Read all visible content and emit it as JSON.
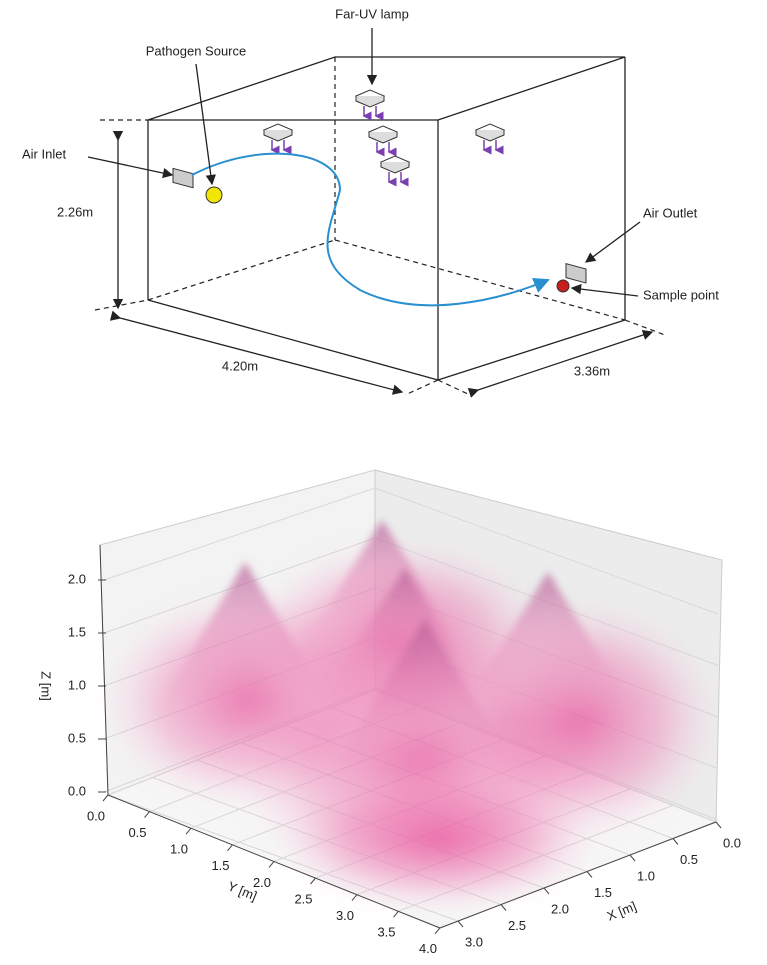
{
  "diagram": {
    "labels": {
      "lamp": "Far-UV lamp",
      "source": "Pathogen Source",
      "inlet": "Air Inlet",
      "outlet": "Air Outlet",
      "sample": "Sample point"
    },
    "dimensions": {
      "height": "2.26m",
      "length": "4.20m",
      "width": "3.36m"
    }
  },
  "plot": {
    "z_label": "Z [m]",
    "y_label": "Y [m]",
    "x_label": "X [m]",
    "zticks": [
      {
        "value": 0,
        "label": "0.0"
      },
      0.5,
      {
        "value": 1,
        "label": "1.0"
      },
      1.5,
      {
        "value": 2,
        "label": "2.0"
      }
    ],
    "yticks": [
      {
        "value": 0,
        "label": "0.0"
      },
      0.5,
      {
        "value": 1,
        "label": "1.0"
      },
      1.5,
      {
        "value": 2,
        "label": "2.0"
      },
      2.5,
      {
        "value": 3,
        "label": "3.0"
      },
      3.5,
      {
        "value": 4,
        "label": "4.0"
      }
    ],
    "xticks": [
      {
        "value": 0,
        "label": "0.0"
      },
      0.5,
      {
        "value": 1,
        "label": "1.0"
      },
      1.5,
      {
        "value": 2,
        "label": "2.0"
      },
      2.5,
      {
        "value": 3,
        "label": "3.0"
      }
    ]
  }
}
